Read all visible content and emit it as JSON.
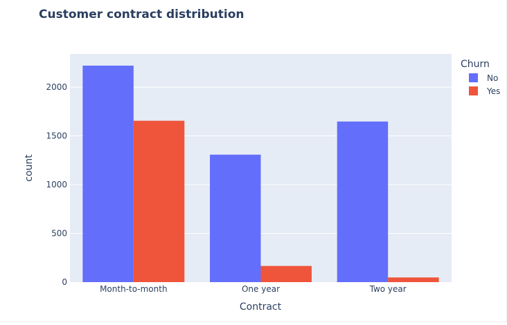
{
  "chart_data": {
    "type": "bar",
    "title": "Customer contract distribution",
    "xlabel": "Contract",
    "ylabel": "count",
    "categories": [
      "Month-to-month",
      "One year",
      "Two year"
    ],
    "series": [
      {
        "name": "No",
        "color": "#636efa",
        "values": [
          2220,
          1307,
          1647
        ]
      },
      {
        "name": "Yes",
        "color": "#ef553b",
        "values": [
          1655,
          166,
          48
        ]
      }
    ],
    "ylim": [
      0,
      2340
    ],
    "yticks": [
      0,
      500,
      1000,
      1500,
      2000
    ],
    "grid": true,
    "legend": {
      "title": "Churn",
      "placement": "top-right"
    }
  }
}
